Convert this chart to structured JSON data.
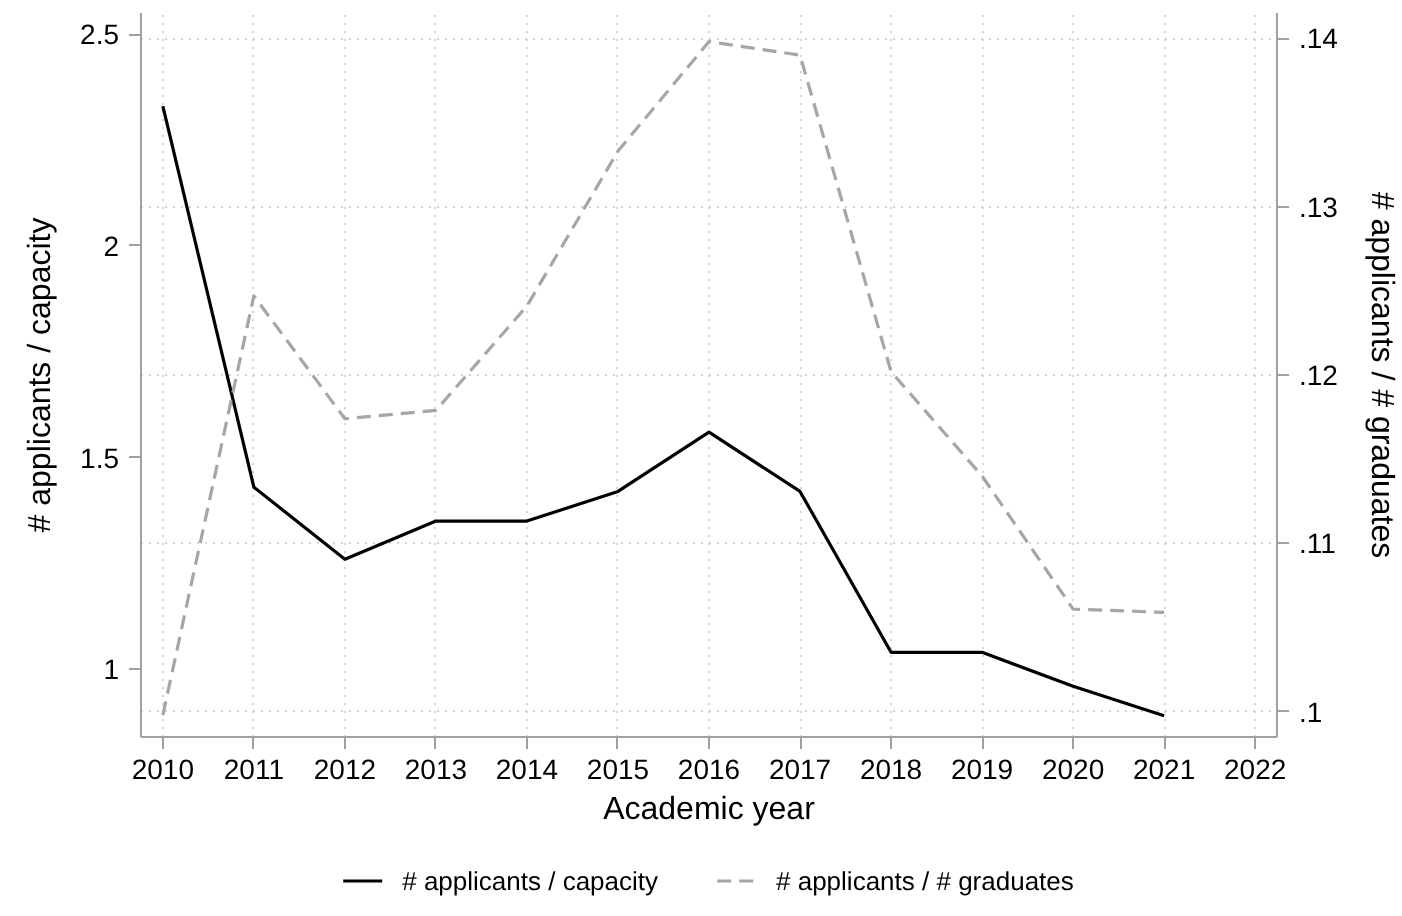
{
  "chart_data": {
    "type": "line",
    "xlabel": "Academic year",
    "ylabel": "# applicants / capacity",
    "y2label": "# applicants / # graduates",
    "x": [
      2010,
      2011,
      2012,
      2013,
      2014,
      2015,
      2016,
      2017,
      2018,
      2019,
      2020,
      2021
    ],
    "xlim": [
      2009.76,
      2022.24
    ],
    "xticks": [
      2010,
      2011,
      2012,
      2013,
      2014,
      2015,
      2016,
      2017,
      2018,
      2019,
      2020,
      2021,
      2022
    ],
    "ylim": [
      0.84,
      2.55
    ],
    "yticks": [
      1,
      1.5,
      2,
      2.5
    ],
    "y2lim": [
      0.0985,
      0.1415
    ],
    "y2ticks": [
      {
        "value": 0.1,
        "label": ".1"
      },
      {
        "value": 0.11,
        "label": ".11"
      },
      {
        "value": 0.12,
        "label": ".12"
      },
      {
        "value": 0.13,
        "label": ".13"
      },
      {
        "value": 0.14,
        "label": ".14"
      }
    ],
    "grid": true,
    "legend": "bottom",
    "series": [
      {
        "name": "# applicants / capacity",
        "color": "#000000",
        "line_style": "solid",
        "values": [
          2.33,
          1.43,
          1.26,
          1.35,
          1.35,
          1.42,
          1.56,
          1.42,
          1.04,
          1.04,
          0.96,
          0.89
        ]
      },
      {
        "name": "# applicants / # graduates",
        "color": "#a6a6a6",
        "line_style": "dashed",
        "axis": "y2",
        "values": [
          0.0998,
          0.1247,
          0.1174,
          0.1179,
          0.1241,
          0.1333,
          0.1398,
          0.139,
          0.1202,
          0.114,
          0.1061,
          0.1059
        ]
      }
    ]
  }
}
